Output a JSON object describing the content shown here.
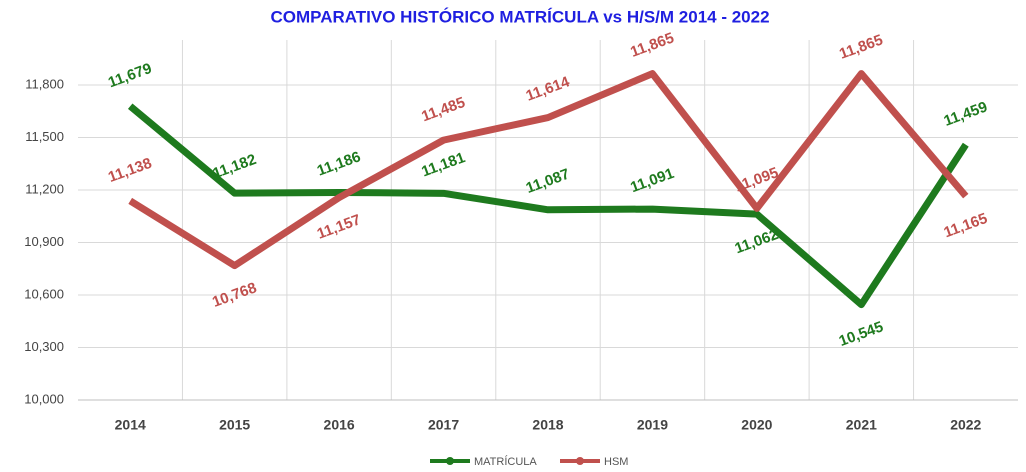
{
  "chart_data": {
    "type": "line",
    "title": "COMPARATIVO HISTÓRICO  MATRÍCULA vs H/S/M   2014 - 2022",
    "categories": [
      "2014",
      "2015",
      "2016",
      "2017",
      "2018",
      "2019",
      "2020",
      "2021",
      "2022"
    ],
    "series": [
      {
        "name": "MATRÍCULA",
        "color": "#1e7a1e",
        "values": [
          11679,
          11182,
          11186,
          11181,
          11087,
          11091,
          11062,
          10545,
          11459
        ],
        "value_labels": [
          "11,679",
          "11,182",
          "11,186",
          "11,181",
          "11,087",
          "11,091",
          "11,062",
          "10,545",
          "11,459"
        ]
      },
      {
        "name": "HSM",
        "color": "#c0504d",
        "values": [
          11138,
          10768,
          11157,
          11485,
          11614,
          11865,
          11095,
          11865,
          11165
        ],
        "value_labels": [
          "11,138",
          "10,768",
          "11,157",
          "11,485",
          "11,614",
          "11,865",
          "11,095",
          "11,865",
          "11,165"
        ]
      }
    ],
    "ylim": [
      10000,
      12000
    ],
    "yticks": [
      {
        "value": 10000,
        "label": "10,000"
      },
      {
        "value": 10300,
        "label": "10,300"
      },
      {
        "value": 10600,
        "label": "10,600"
      },
      {
        "value": 10900,
        "label": "10,900"
      },
      {
        "value": 11200,
        "label": "11,200"
      },
      {
        "value": 11500,
        "label": "11,500"
      },
      {
        "value": 11800,
        "label": "11,800"
      }
    ],
    "grid": true
  }
}
